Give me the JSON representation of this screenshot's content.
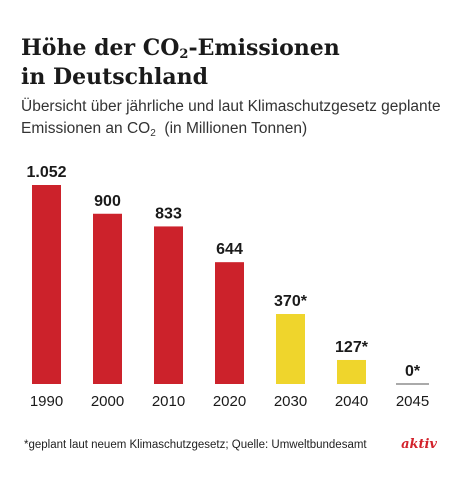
{
  "title_part1": "Höhe der CO",
  "title_sub": "2",
  "title_part2": "-Emissionen",
  "title_line2": "in Deutschland",
  "subtitle_line1": "Übersicht über jährliche und laut Klimaschutzgesetz geplante",
  "subtitle_line2_part1": "Emissionen an CO",
  "subtitle_sub": "2",
  "subtitle_line2_part2": "(in Millionen Tonnen)",
  "footnote": "*geplant laut neuem Klimaschutzgesetz; Quelle: Umweltbundesamt",
  "brand": "aktiv",
  "colors": {
    "actual": "#cc222b",
    "planned": "#efd52c",
    "baseline": "#555555"
  },
  "chart_data": {
    "type": "bar",
    "categories": [
      "1990",
      "2000",
      "2010",
      "2020",
      "2030",
      "2040",
      "2045"
    ],
    "values": [
      1052,
      900,
      833,
      644,
      370,
      127,
      0
    ],
    "value_labels": [
      "1.052",
      "900",
      "833",
      "644",
      "370*",
      "127*",
      "0*"
    ],
    "status": [
      "actual",
      "actual",
      "actual",
      "actual",
      "planned",
      "planned",
      "planned"
    ],
    "ylim": [
      0,
      1052
    ],
    "grid": false,
    "legend": "none"
  }
}
